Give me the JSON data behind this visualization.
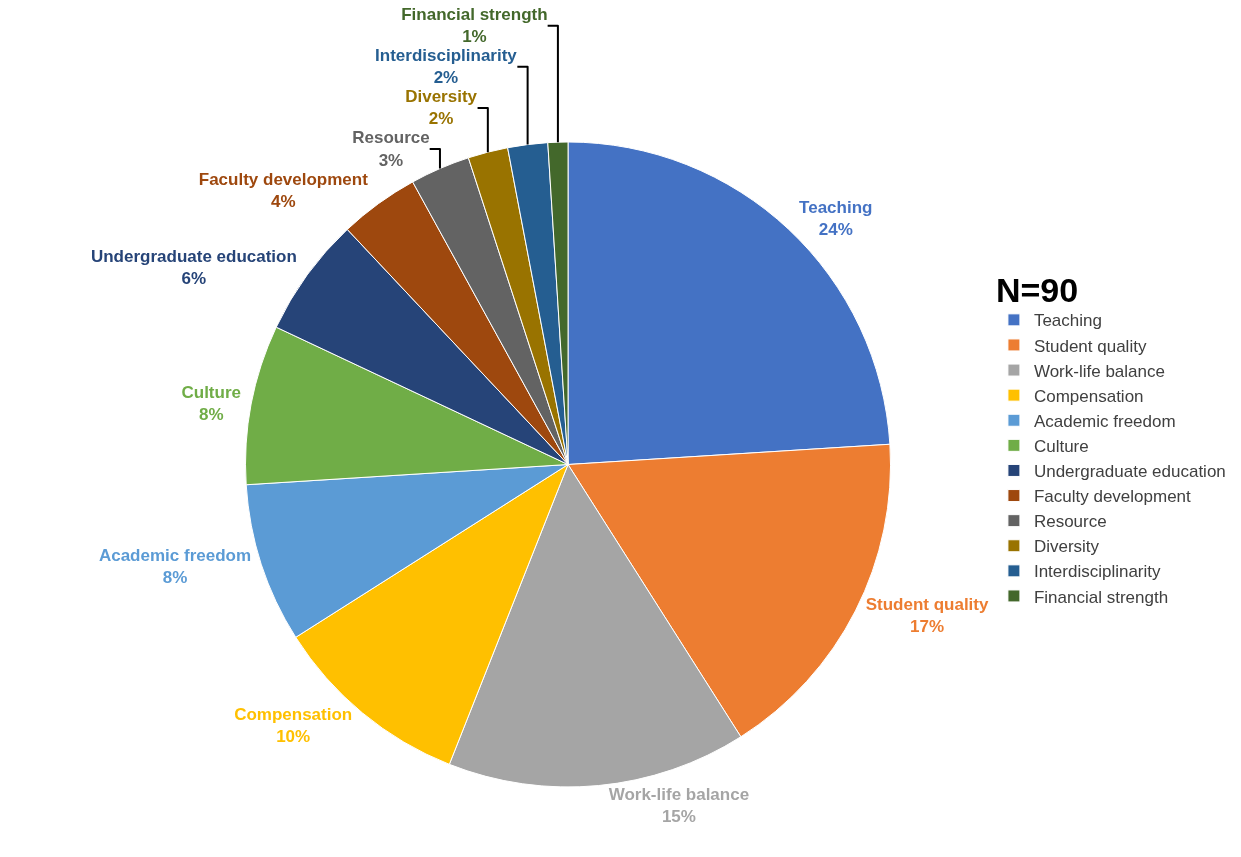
{
  "chart_data": {
    "type": "pie",
    "categories": [
      "Teaching",
      "Student quality",
      "Work-life balance",
      "Compensation",
      "Academic freedom",
      "Culture",
      "Undergraduate education",
      "Faculty development",
      "Resource",
      "Diversity",
      "Interdisciplinarity",
      "Financial strength"
    ],
    "values": [
      24,
      17,
      15,
      10,
      8,
      8,
      6,
      4,
      3,
      2,
      2,
      1
    ],
    "value_labels": [
      "24%",
      "17%",
      "15%",
      "10%",
      "8%",
      "8%",
      "6%",
      "4%",
      "3%",
      "2%",
      "2%",
      "1%"
    ],
    "colors": [
      "#4472c4",
      "#ed7d31",
      "#a5a5a5",
      "#ffc000",
      "#5b9bd5",
      "#70ad47",
      "#264478",
      "#9e480e",
      "#636363",
      "#997300",
      "#255e91",
      "#43682b"
    ],
    "legend_title": "N=90",
    "legend": "right"
  }
}
